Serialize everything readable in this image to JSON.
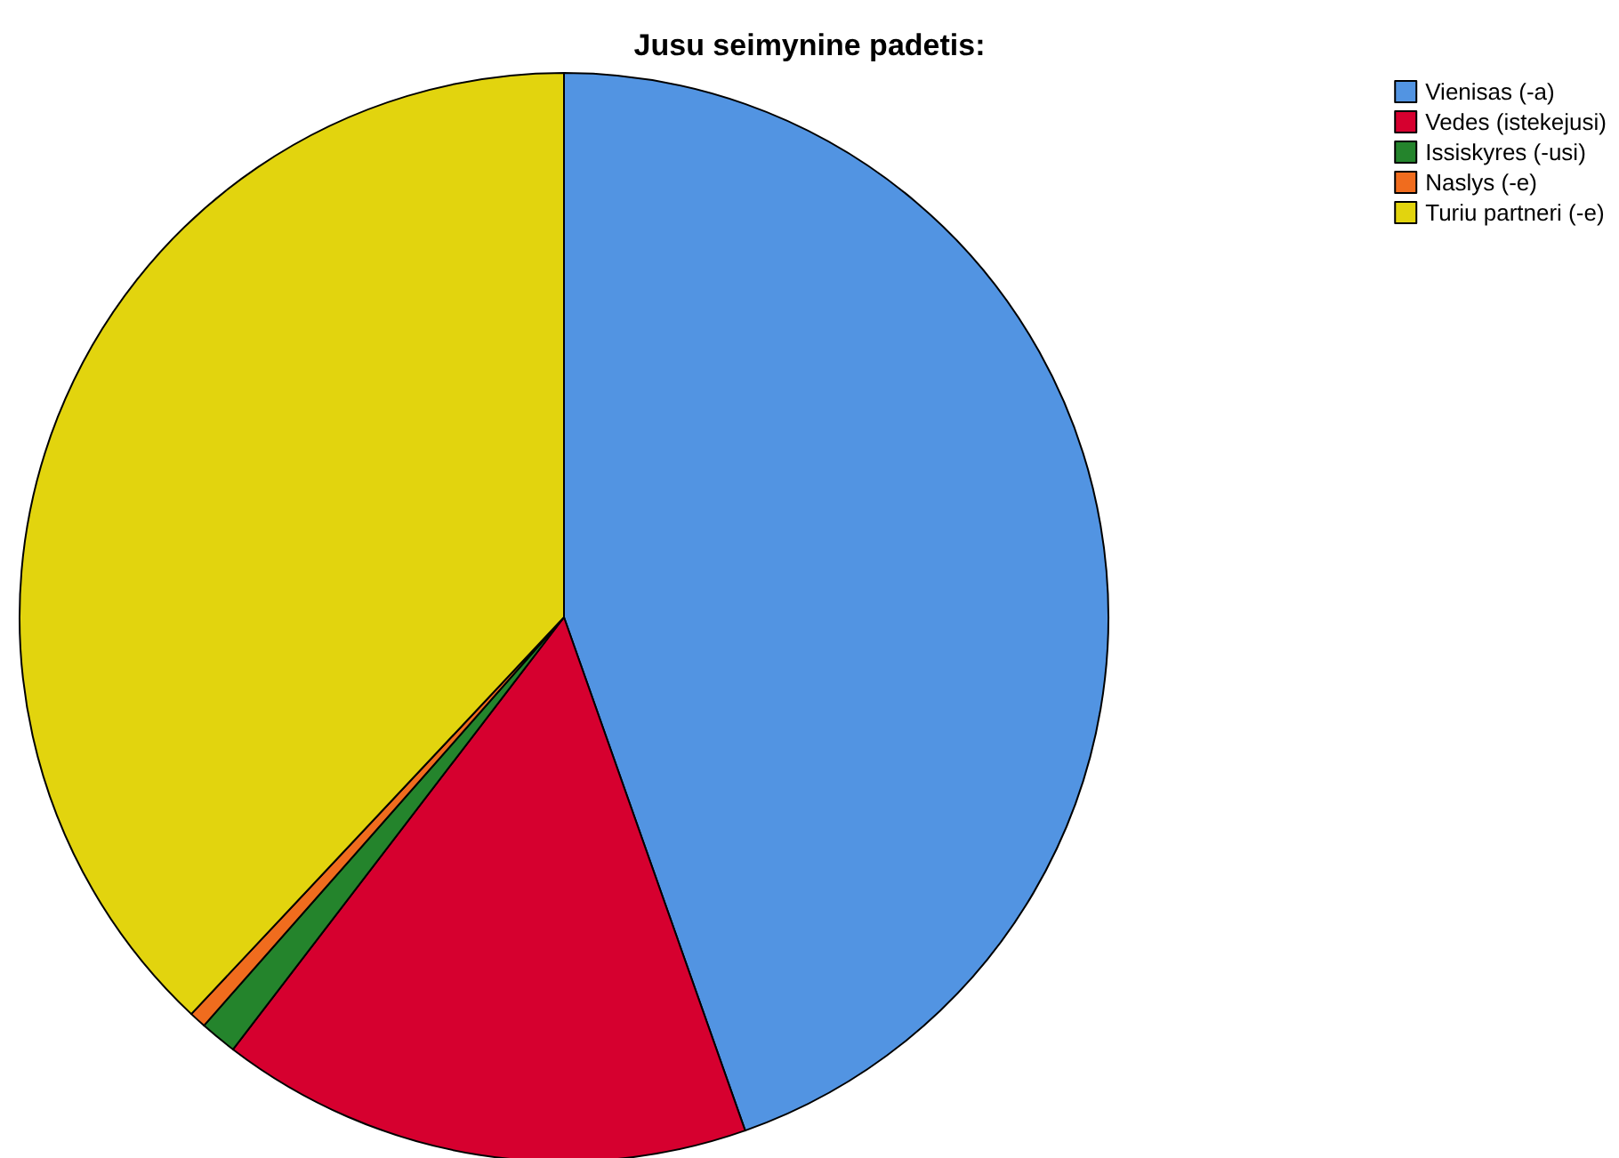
{
  "chart_data": {
    "type": "pie",
    "title": "Jusu seimynine padetis:",
    "categories": [
      "Vienisas (-a)",
      "Vedes (istekejusi)",
      "Issiskyres (-usi)",
      "Naslys (-e)",
      "Turiu partneri (-e)"
    ],
    "values": [
      44.6,
      15.8,
      1.1,
      0.5,
      38.0
    ],
    "colors": [
      "#5294e2",
      "#d6002f",
      "#24842c",
      "#f06c1e",
      "#e2d40e"
    ],
    "legend": "top right"
  }
}
